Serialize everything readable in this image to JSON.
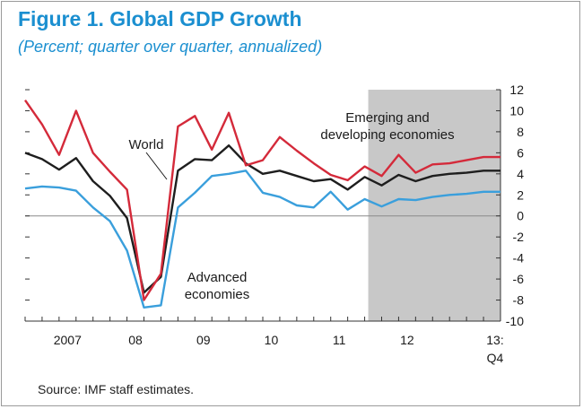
{
  "header": {
    "title": "Figure 1. Global GDP Growth",
    "subtitle": "(Percent; quarter over quarter, annualized)"
  },
  "footer": {
    "source": "Source: IMF staff estimates."
  },
  "colors": {
    "title": "#1b8fd0",
    "emerging": "#d42a3a",
    "world": "#1e1e1e",
    "advanced": "#3a9fdc",
    "projection_shade": "#c8c8c8"
  },
  "chart_data": {
    "type": "line",
    "title": "Figure 1. Global GDP Growth",
    "subtitle": "(Percent; quarter over quarter, annualized)",
    "xlabel": "",
    "ylabel": "",
    "ylim": [
      -10,
      12
    ],
    "y_ticks": [
      12,
      10,
      8,
      6,
      4,
      2,
      0,
      -2,
      -4,
      -6,
      -8,
      -10
    ],
    "grid": false,
    "zero_line": true,
    "x_ticks": [
      {
        "label": "2007",
        "x": "2007"
      },
      {
        "label": "08",
        "x": "2008"
      },
      {
        "label": "09",
        "x": "2009"
      },
      {
        "label": "10",
        "x": "2010"
      },
      {
        "label": "11",
        "x": "2011"
      },
      {
        "label": "12",
        "x": "2012"
      },
      {
        "label": "13:",
        "x": "2013Q4"
      }
    ],
    "x_sublabel": "Q4",
    "x_start": "2006Q4",
    "x_end": "2013Q4",
    "shaded_region": {
      "from": "2011Q4",
      "to": "2013Q4"
    },
    "x": [
      "2006Q4",
      "2007Q1",
      "2007Q2",
      "2007Q3",
      "2007Q4",
      "2008Q1",
      "2008Q2",
      "2008Q3",
      "2008Q4",
      "2009Q1",
      "2009Q2",
      "2009Q3",
      "2009Q4",
      "2010Q1",
      "2010Q2",
      "2010Q3",
      "2010Q4",
      "2011Q1",
      "2011Q2",
      "2011Q3",
      "2011Q4",
      "2012Q1",
      "2012Q2",
      "2012Q3",
      "2012Q4",
      "2013Q1",
      "2013Q2",
      "2013Q3",
      "2013Q4"
    ],
    "series": [
      {
        "name": "Emerging and developing economies",
        "label": "Emerging and developing economies",
        "values": [
          11.0,
          8.7,
          5.8,
          10.0,
          6.0,
          4.2,
          2.5,
          -8.0,
          -5.5,
          8.5,
          9.5,
          6.3,
          9.8,
          4.8,
          5.3,
          7.5,
          6.2,
          5.0,
          3.9,
          3.4,
          4.7,
          3.8,
          5.8,
          4.1,
          4.9,
          5.0,
          5.3,
          5.6,
          5.6
        ]
      },
      {
        "name": "World",
        "label": "World",
        "values": [
          6.0,
          5.4,
          4.4,
          5.5,
          3.3,
          1.9,
          -0.2,
          -7.3,
          -5.8,
          4.3,
          5.4,
          5.3,
          6.7,
          5.0,
          4.0,
          4.3,
          3.8,
          3.3,
          3.5,
          2.5,
          3.7,
          2.9,
          3.9,
          3.3,
          3.8,
          4.0,
          4.1,
          4.3,
          4.3
        ]
      },
      {
        "name": "Advanced economies",
        "label": "Advanced economies",
        "values": [
          2.6,
          2.8,
          2.7,
          2.4,
          0.8,
          -0.5,
          -3.3,
          -8.7,
          -8.5,
          0.8,
          2.2,
          3.8,
          4.0,
          4.3,
          2.2,
          1.8,
          1.0,
          0.8,
          2.3,
          0.6,
          1.6,
          0.9,
          1.6,
          1.5,
          1.8,
          2.0,
          2.1,
          2.3,
          2.3
        ]
      }
    ],
    "annotations": [
      {
        "text": "Emerging and",
        "near": "emerging"
      },
      {
        "text": "developing economies",
        "near": "emerging"
      },
      {
        "text": "World",
        "near": "world"
      },
      {
        "text": "Advanced",
        "near": "advanced"
      },
      {
        "text": "economies",
        "near": "advanced"
      }
    ]
  }
}
